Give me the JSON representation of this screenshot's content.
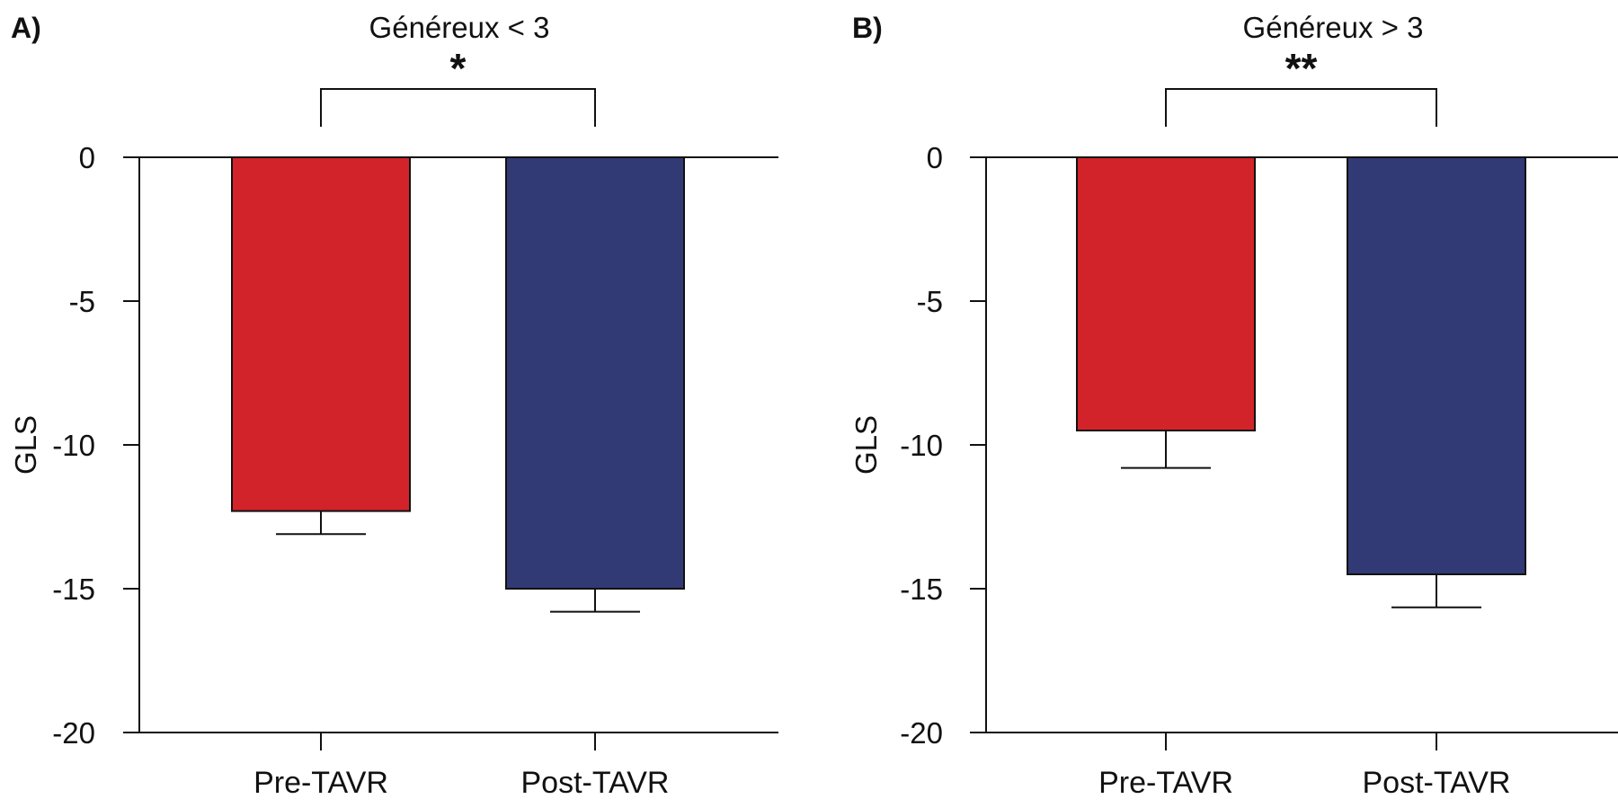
{
  "chart_data": [
    {
      "type": "bar",
      "panel_label": "A)",
      "title": "Généreux < 3",
      "xlabel": "",
      "ylabel": "GLS",
      "categories": [
        "Pre-TAVR",
        "Post-TAVR"
      ],
      "values": [
        -12.3,
        -15.0
      ],
      "error": [
        0.8,
        0.8
      ],
      "colors": [
        "#d2232a",
        "#313a74"
      ],
      "ylim": [
        -20,
        0
      ],
      "yticks": [
        0,
        -5,
        -10,
        -15,
        -20
      ],
      "ytick_labels": [
        "0",
        "-5",
        "-10",
        "-15",
        "-20"
      ],
      "significance": "*"
    },
    {
      "type": "bar",
      "panel_label": "B)",
      "title": "Généreux > 3",
      "xlabel": "",
      "ylabel": "GLS",
      "categories": [
        "Pre-TAVR",
        "Post-TAVR"
      ],
      "values": [
        -9.5,
        -14.5
      ],
      "error": [
        1.3,
        1.15
      ],
      "colors": [
        "#d2232a",
        "#313a74"
      ],
      "ylim": [
        -20,
        0
      ],
      "yticks": [
        0,
        -5,
        -10,
        -15,
        -20
      ],
      "ytick_labels": [
        "0",
        "-5",
        "-10",
        "-15",
        "-20"
      ],
      "significance": "**"
    }
  ]
}
